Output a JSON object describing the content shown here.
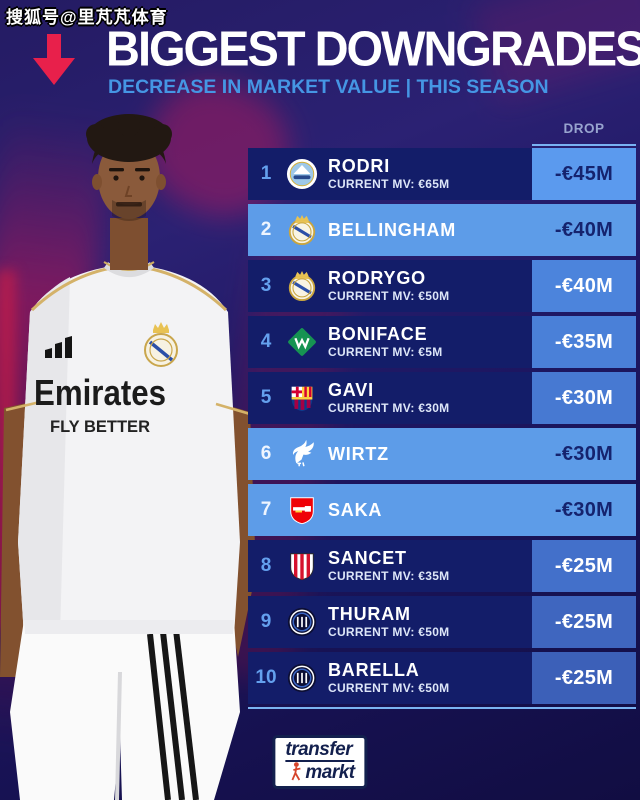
{
  "watermark": {
    "text": "搜狐号@里芃芃体育"
  },
  "header": {
    "title": "BIGGEST DOWNGRADES",
    "subtitle": "DECREASE IN MARKET VALUE | THIS SEASON",
    "arrow_icon": "down-arrow-icon",
    "arrow_color": "#e8204b"
  },
  "list": {
    "column_header": "DROP",
    "rows": [
      {
        "rank": "1",
        "club_icon": "man-city-badge",
        "name": "RODRI",
        "current_mv": "CURRENT MV: €65M",
        "drop": "-€45M",
        "highlight": false,
        "drop_bg": "#5b9aee",
        "drop_text": "#15236e"
      },
      {
        "rank": "2",
        "club_icon": "real-madrid-badge",
        "name": "BELLINGHAM",
        "current_mv": "",
        "drop": "-€40M",
        "highlight": true,
        "drop_bg": "",
        "drop_text": "#15236e"
      },
      {
        "rank": "3",
        "club_icon": "real-madrid-badge",
        "name": "RODRYGO",
        "current_mv": "CURRENT MV: €50M",
        "drop": "-€40M",
        "highlight": false,
        "drop_bg": "#4c84dc",
        "drop_text": "#ffffff"
      },
      {
        "rank": "4",
        "club_icon": "werder-bremen-badge",
        "name": "BONIFACE",
        "current_mv": "CURRENT MV: €5M",
        "drop": "-€35M",
        "highlight": false,
        "drop_bg": "#4a80d8",
        "drop_text": "#ffffff"
      },
      {
        "rank": "5",
        "club_icon": "barcelona-badge",
        "name": "GAVI",
        "current_mv": "CURRENT MV: €30M",
        "drop": "-€30M",
        "highlight": false,
        "drop_bg": "#4779d2",
        "drop_text": "#ffffff"
      },
      {
        "rank": "6",
        "club_icon": "liverpool-badge",
        "name": "WIRTZ",
        "current_mv": "",
        "drop": "-€30M",
        "highlight": true,
        "drop_bg": "",
        "drop_text": "#15236e"
      },
      {
        "rank": "7",
        "club_icon": "arsenal-badge",
        "name": "SAKA",
        "current_mv": "",
        "drop": "-€30M",
        "highlight": true,
        "drop_bg": "",
        "drop_text": "#15236e"
      },
      {
        "rank": "8",
        "club_icon": "athletic-bilbao-badge",
        "name": "SANCET",
        "current_mv": "CURRENT MV: €35M",
        "drop": "-€25M",
        "highlight": false,
        "drop_bg": "#4370ca",
        "drop_text": "#ffffff"
      },
      {
        "rank": "9",
        "club_icon": "inter-badge",
        "name": "THURAM",
        "current_mv": "CURRENT MV: €50M",
        "drop": "-€25M",
        "highlight": false,
        "drop_bg": "#3f66bf",
        "drop_text": "#ffffff"
      },
      {
        "rank": "10",
        "club_icon": "inter-badge",
        "name": "BARELLA",
        "current_mv": "CURRENT MV: €50M",
        "drop": "-€25M",
        "highlight": false,
        "drop_bg": "#3c60b8",
        "drop_text": "#ffffff"
      }
    ]
  },
  "player": {
    "jersey": {
      "sponsor": "Emirates",
      "tagline": "FLY BETTER"
    }
  },
  "footer": {
    "brand_line1": "transfer",
    "brand_line2": "markt",
    "figure_icon": "red-player-icon"
  },
  "colors": {
    "accent_red": "#e8204b",
    "subtitle_blue": "#4596e4",
    "dark_row": "#131d69",
    "light_row": "#5d9ce8",
    "navy_text": "#15236e"
  },
  "chart_data": {
    "type": "table",
    "title": "BIGGEST DOWNGRADES",
    "subtitle": "DECREASE IN MARKET VALUE | THIS SEASON",
    "columns": [
      "rank",
      "club",
      "player",
      "current_mv",
      "drop"
    ],
    "rows": [
      [
        1,
        "Manchester City",
        "RODRI",
        "€65M",
        "-€45M"
      ],
      [
        2,
        "Real Madrid",
        "BELLINGHAM",
        null,
        "-€40M"
      ],
      [
        3,
        "Real Madrid",
        "RODRYGO",
        "€50M",
        "-€40M"
      ],
      [
        4,
        "Werder Bremen",
        "BONIFACE",
        "€5M",
        "-€35M"
      ],
      [
        5,
        "Barcelona",
        "GAVI",
        "€30M",
        "-€30M"
      ],
      [
        6,
        "Liverpool",
        "WIRTZ",
        null,
        "-€30M"
      ],
      [
        7,
        "Arsenal",
        "SAKA",
        null,
        "-€30M"
      ],
      [
        8,
        "Athletic Bilbao",
        "SANCET",
        "€35M",
        "-€25M"
      ],
      [
        9,
        "Inter",
        "THURAM",
        "€50M",
        "-€25M"
      ],
      [
        10,
        "Inter",
        "BARELLA",
        "€50M",
        "-€25M"
      ]
    ]
  }
}
